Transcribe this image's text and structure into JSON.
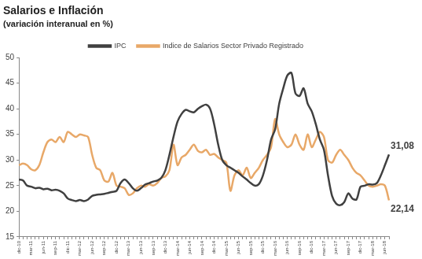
{
  "chart_data": {
    "type": "line",
    "title": "Salarios e Inflación",
    "subtitle": "(variación interanual en %)",
    "categories": [
      "dic-10",
      null,
      null,
      "mar-11",
      null,
      null,
      "jun-11",
      null,
      null,
      "sep-11",
      null,
      null,
      "dic-11",
      null,
      null,
      "mar-12",
      null,
      null,
      "jun-12",
      null,
      null,
      "sep-12",
      null,
      null,
      "dic-12",
      null,
      null,
      "mar-13",
      null,
      null,
      "jun-13",
      null,
      null,
      "sep-13",
      null,
      null,
      "dic-13",
      null,
      null,
      "mar-14",
      null,
      null,
      "jun-14",
      null,
      null,
      "sep-14",
      null,
      null,
      "dic-14",
      null,
      null,
      "mar-15",
      null,
      null,
      "jun-15",
      null,
      null,
      "sep-15",
      null,
      null,
      "dic-15",
      null,
      null,
      "mar-16",
      null,
      null,
      "jun-16",
      null,
      null,
      "sep-16",
      null,
      null,
      "dic-16",
      null,
      null,
      "mar-17",
      null,
      null,
      "jun-17",
      null,
      null,
      "sep-17",
      null,
      null,
      "dic-17",
      null,
      null,
      "mar-18",
      null,
      null,
      "jun-18",
      null
    ],
    "series": [
      {
        "name": "IPC",
        "color": "#404040",
        "values": [
          26.2,
          26,
          25,
          24.8,
          24.5,
          24.6,
          24.3,
          24.4,
          24.1,
          24.2,
          24,
          23.5,
          22.5,
          22.2,
          22,
          22.2,
          22,
          22.3,
          23,
          23.2,
          23.3,
          23.4,
          23.6,
          23.8,
          24,
          25.5,
          26.2,
          25.5,
          24.5,
          24,
          24.5,
          25.2,
          25.5,
          25.8,
          26,
          26.5,
          28,
          31,
          34.5,
          37.5,
          39,
          39.8,
          39.5,
          39.3,
          40,
          40.5,
          40.8,
          40,
          37,
          33,
          30,
          29,
          28.5,
          28,
          27.5,
          26.8,
          26.2,
          25.5,
          25,
          25.3,
          27,
          30,
          34,
          36,
          41,
          44,
          46.5,
          47,
          43,
          42.5,
          44,
          41,
          39.5,
          37,
          34,
          32,
          27,
          23,
          21.5,
          21.2,
          21.8,
          23.5,
          22.5,
          22.3,
          24.8,
          25,
          25.3,
          25.2,
          25.5,
          27,
          29,
          31.08
        ],
        "value_labels": [
          null,
          null,
          null,
          null,
          null,
          null,
          null,
          null,
          null,
          null,
          null,
          null,
          null,
          null,
          null,
          null,
          null,
          null,
          null,
          null,
          null,
          null,
          null,
          null,
          null,
          null,
          null,
          null,
          null,
          null,
          null,
          null,
          null,
          null,
          null,
          null,
          null,
          null,
          null,
          null,
          null,
          null,
          null,
          null,
          null,
          null,
          null,
          null,
          null,
          null,
          null,
          null,
          null,
          null,
          null,
          null,
          null,
          null,
          null,
          null,
          null,
          null,
          null,
          null,
          null,
          null,
          null,
          null,
          null,
          null,
          null,
          null,
          null,
          null,
          null,
          null,
          null,
          null,
          null,
          null,
          null,
          null,
          null,
          null,
          null,
          null,
          null,
          null,
          null,
          null,
          null,
          "31,08"
        ]
      },
      {
        "name": "Indice de Salarios Sector Privado Registrado",
        "color": "#E8A868",
        "values": [
          29,
          29.3,
          29,
          28.2,
          28,
          29,
          31.5,
          33.5,
          34,
          33.5,
          34.5,
          33.5,
          35.5,
          35,
          34.5,
          35,
          34.8,
          34.5,
          31,
          28.5,
          28,
          26,
          25.8,
          27.5,
          25,
          24.8,
          24.5,
          23.2,
          23.5,
          24.5,
          25,
          24.8,
          25.3,
          25,
          25.5,
          26.5,
          26.8,
          28,
          33,
          29,
          30.5,
          31,
          32,
          33,
          31.8,
          31.5,
          32,
          31,
          31.2,
          30.5,
          30,
          29.5,
          24,
          27,
          28,
          27,
          28.5,
          26.5,
          27.5,
          28.5,
          30,
          31,
          32.5,
          38,
          35,
          33.5,
          32.5,
          33,
          35,
          33,
          32,
          35,
          32.5,
          34,
          35.5,
          34.5,
          30,
          29.5,
          31,
          32,
          31,
          30,
          28.5,
          27.5,
          27,
          26,
          25,
          24.8,
          25,
          25.3,
          25,
          22.14
        ],
        "value_labels": [
          null,
          null,
          null,
          null,
          null,
          null,
          null,
          null,
          null,
          null,
          null,
          null,
          null,
          null,
          null,
          null,
          null,
          null,
          null,
          null,
          null,
          null,
          null,
          null,
          null,
          null,
          null,
          null,
          null,
          null,
          null,
          null,
          null,
          null,
          null,
          null,
          null,
          null,
          null,
          null,
          null,
          null,
          null,
          null,
          null,
          null,
          null,
          null,
          null,
          null,
          null,
          null,
          null,
          null,
          null,
          null,
          null,
          null,
          null,
          null,
          null,
          null,
          null,
          null,
          null,
          null,
          null,
          null,
          null,
          null,
          null,
          null,
          null,
          null,
          null,
          null,
          null,
          null,
          null,
          null,
          null,
          null,
          null,
          null,
          null,
          null,
          null,
          null,
          null,
          null,
          null,
          "22,14"
        ]
      }
    ],
    "ylim": [
      15,
      50
    ],
    "yticks": [
      15,
      20,
      25,
      30,
      35,
      40,
      45,
      50
    ],
    "grid": false,
    "legend": "top"
  }
}
